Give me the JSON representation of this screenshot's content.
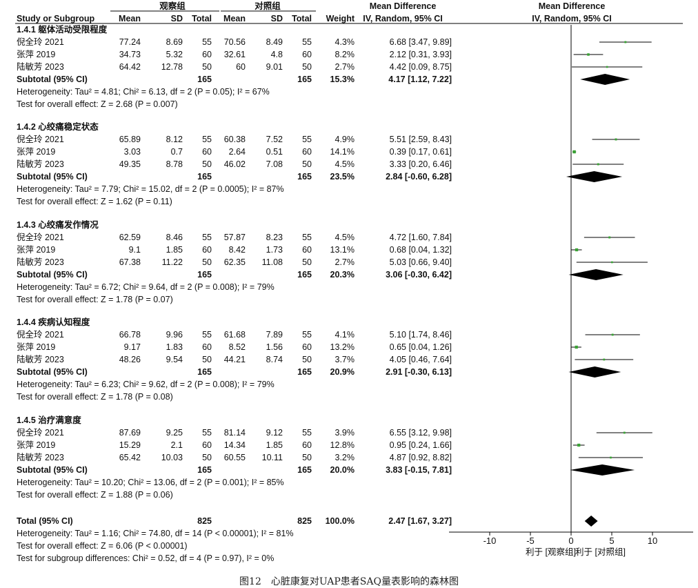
{
  "header": {
    "group1": "观察组",
    "group2": "对照组",
    "md_title": "Mean Difference",
    "md_method": "IV, Random, 95% CI",
    "columns": [
      "Study or Subgroup",
      "Mean",
      "SD",
      "Total",
      "Mean",
      "SD",
      "Total",
      "Weight",
      "IV, Random, 95% CI"
    ]
  },
  "axis": {
    "ticks": [
      "-10",
      "-5",
      "0",
      "5",
      "10"
    ],
    "favours_left": "利于 [观察组]",
    "favours_right": "利于 [对照组]"
  },
  "caption": "图12　心脏康复对UAP患者SAQ量表影响的森林图",
  "chart_data": {
    "type": "forest",
    "xlim": [
      -15,
      15
    ],
    "subgroups": [
      {
        "name": "1.4.1 躯体活动受限程度",
        "studies": [
          {
            "name": "倪全玲 2021",
            "m1": "77.24",
            "sd1": "8.69",
            "n1": "55",
            "m2": "70.56",
            "sd2": "8.49",
            "n2": "55",
            "weight": "4.3%",
            "ci_text": "6.68 [3.47, 9.89]",
            "md": 6.68,
            "lo": 3.47,
            "hi": 9.89
          },
          {
            "name": "张萍 2019",
            "m1": "34.73",
            "sd1": "5.32",
            "n1": "60",
            "m2": "32.61",
            "sd2": "4.8",
            "n2": "60",
            "weight": "8.2%",
            "ci_text": "2.12 [0.31, 3.93]",
            "md": 2.12,
            "lo": 0.31,
            "hi": 3.93
          },
          {
            "name": "陆敏芳 2023",
            "m1": "64.42",
            "sd1": "12.78",
            "n1": "50",
            "m2": "60",
            "sd2": "9.01",
            "n2": "50",
            "weight": "2.7%",
            "ci_text": "4.42 [0.09, 8.75]",
            "md": 4.42,
            "lo": 0.09,
            "hi": 8.75
          }
        ],
        "subtotal": {
          "label": "Subtotal (95% CI)",
          "n1": "165",
          "n2": "165",
          "weight": "15.3%",
          "ci_text": "4.17 [1.12, 7.22]",
          "md": 4.17,
          "lo": 1.12,
          "hi": 7.22
        },
        "heterogeneity": "Heterogeneity: Tau² = 4.81; Chi² = 6.13, df = 2 (P = 0.05); I² = 67%",
        "overall": "Test for overall effect: Z = 2.68 (P = 0.007)"
      },
      {
        "name": "1.4.2 心绞痛稳定状态",
        "studies": [
          {
            "name": "倪全玲 2021",
            "m1": "65.89",
            "sd1": "8.12",
            "n1": "55",
            "m2": "60.38",
            "sd2": "7.52",
            "n2": "55",
            "weight": "4.9%",
            "ci_text": "5.51 [2.59, 8.43]",
            "md": 5.51,
            "lo": 2.59,
            "hi": 8.43
          },
          {
            "name": "张萍 2019",
            "m1": "3.03",
            "sd1": "0.7",
            "n1": "60",
            "m2": "2.64",
            "sd2": "0.51",
            "n2": "60",
            "weight": "14.1%",
            "ci_text": "0.39 [0.17, 0.61]",
            "md": 0.39,
            "lo": 0.17,
            "hi": 0.61
          },
          {
            "name": "陆敏芳 2023",
            "m1": "49.35",
            "sd1": "8.78",
            "n1": "50",
            "m2": "46.02",
            "sd2": "7.08",
            "n2": "50",
            "weight": "4.5%",
            "ci_text": "3.33 [0.20, 6.46]",
            "md": 3.33,
            "lo": 0.2,
            "hi": 6.46
          }
        ],
        "subtotal": {
          "label": "Subtotal (95% CI)",
          "n1": "165",
          "n2": "165",
          "weight": "23.5%",
          "ci_text": "2.84 [-0.60, 6.28]",
          "md": 2.84,
          "lo": -0.6,
          "hi": 6.28
        },
        "heterogeneity": "Heterogeneity: Tau² = 7.79; Chi² = 15.02, df = 2 (P = 0.0005); I² = 87%",
        "overall": "Test for overall effect: Z = 1.62 (P = 0.11)"
      },
      {
        "name": "1.4.3 心绞痛发作情况",
        "studies": [
          {
            "name": "倪全玲 2021",
            "m1": "62.59",
            "sd1": "8.46",
            "n1": "55",
            "m2": "57.87",
            "sd2": "8.23",
            "n2": "55",
            "weight": "4.5%",
            "ci_text": "4.72 [1.60, 7.84]",
            "md": 4.72,
            "lo": 1.6,
            "hi": 7.84
          },
          {
            "name": "张萍 2019",
            "m1": "9.1",
            "sd1": "1.85",
            "n1": "60",
            "m2": "8.42",
            "sd2": "1.73",
            "n2": "60",
            "weight": "13.1%",
            "ci_text": "0.68 [0.04, 1.32]",
            "md": 0.68,
            "lo": 0.04,
            "hi": 1.32
          },
          {
            "name": "陆敏芳 2023",
            "m1": "67.38",
            "sd1": "11.22",
            "n1": "50",
            "m2": "62.35",
            "sd2": "11.08",
            "n2": "50",
            "weight": "2.7%",
            "ci_text": "5.03 [0.66, 9.40]",
            "md": 5.03,
            "lo": 0.66,
            "hi": 9.4
          }
        ],
        "subtotal": {
          "label": "Subtotal (95% CI)",
          "n1": "165",
          "n2": "165",
          "weight": "20.3%",
          "ci_text": "3.06 [-0.30, 6.42]",
          "md": 3.06,
          "lo": -0.3,
          "hi": 6.42
        },
        "heterogeneity": "Heterogeneity: Tau² = 6.72; Chi² = 9.64, df = 2 (P = 0.008); I² = 79%",
        "overall": "Test for overall effect: Z = 1.78 (P = 0.07)"
      },
      {
        "name": "1.4.4 疾病认知程度",
        "studies": [
          {
            "name": "倪全玲 2021",
            "m1": "66.78",
            "sd1": "9.96",
            "n1": "55",
            "m2": "61.68",
            "sd2": "7.89",
            "n2": "55",
            "weight": "4.1%",
            "ci_text": "5.10 [1.74, 8.46]",
            "md": 5.1,
            "lo": 1.74,
            "hi": 8.46
          },
          {
            "name": "张萍 2019",
            "m1": "9.17",
            "sd1": "1.83",
            "n1": "60",
            "m2": "8.52",
            "sd2": "1.56",
            "n2": "60",
            "weight": "13.2%",
            "ci_text": "0.65 [0.04, 1.26]",
            "md": 0.65,
            "lo": 0.04,
            "hi": 1.26
          },
          {
            "name": "陆敏芳 2023",
            "m1": "48.26",
            "sd1": "9.54",
            "n1": "50",
            "m2": "44.21",
            "sd2": "8.74",
            "n2": "50",
            "weight": "3.7%",
            "ci_text": "4.05 [0.46, 7.64]",
            "md": 4.05,
            "lo": 0.46,
            "hi": 7.64
          }
        ],
        "subtotal": {
          "label": "Subtotal (95% CI)",
          "n1": "165",
          "n2": "165",
          "weight": "20.9%",
          "ci_text": "2.91 [-0.30, 6.13]",
          "md": 2.91,
          "lo": -0.3,
          "hi": 6.13
        },
        "heterogeneity": "Heterogeneity: Tau² = 6.23; Chi² = 9.62, df = 2 (P = 0.008); I² = 79%",
        "overall": "Test for overall effect: Z = 1.78 (P = 0.08)"
      },
      {
        "name": "1.4.5 治疗满意度",
        "studies": [
          {
            "name": "倪全玲 2021",
            "m1": "87.69",
            "sd1": "9.25",
            "n1": "55",
            "m2": "81.14",
            "sd2": "9.12",
            "n2": "55",
            "weight": "3.9%",
            "ci_text": "6.55 [3.12, 9.98]",
            "md": 6.55,
            "lo": 3.12,
            "hi": 9.98
          },
          {
            "name": "张萍 2019",
            "m1": "15.29",
            "sd1": "2.1",
            "n1": "60",
            "m2": "14.34",
            "sd2": "1.85",
            "n2": "60",
            "weight": "12.8%",
            "ci_text": "0.95 [0.24, 1.66]",
            "md": 0.95,
            "lo": 0.24,
            "hi": 1.66
          },
          {
            "name": "陆敏芳 2023",
            "m1": "65.42",
            "sd1": "10.03",
            "n1": "50",
            "m2": "60.55",
            "sd2": "10.11",
            "n2": "50",
            "weight": "3.2%",
            "ci_text": "4.87 [0.92, 8.82]",
            "md": 4.87,
            "lo": 0.92,
            "hi": 8.82
          }
        ],
        "subtotal": {
          "label": "Subtotal (95% CI)",
          "n1": "165",
          "n2": "165",
          "weight": "20.0%",
          "ci_text": "3.83 [-0.15, 7.81]",
          "md": 3.83,
          "lo": -0.15,
          "hi": 7.81
        },
        "heterogeneity": "Heterogeneity: Tau² = 10.20; Chi² = 13.06, df = 2 (P = 0.001); I² = 85%",
        "overall": "Test for overall effect: Z = 1.88 (P = 0.06)"
      }
    ],
    "total": {
      "label": "Total (95% CI)",
      "n1": "825",
      "n2": "825",
      "weight": "100.0%",
      "ci_text": "2.47 [1.67, 3.27]",
      "md": 2.47,
      "lo": 1.67,
      "hi": 3.27,
      "heterogeneity": "Heterogeneity: Tau² = 1.16; Chi² = 74.80, df = 14 (P < 0.00001); I² = 81%",
      "overall": "Test for overall effect: Z = 6.06 (P < 0.00001)",
      "subgroup_diff": "Test for subgroup differences: Chi² = 0.52, df = 4 (P = 0.97), I² = 0%"
    },
    "colors": {
      "point": "#3aa335",
      "diamond": "#000000",
      "line": "#000000"
    }
  }
}
